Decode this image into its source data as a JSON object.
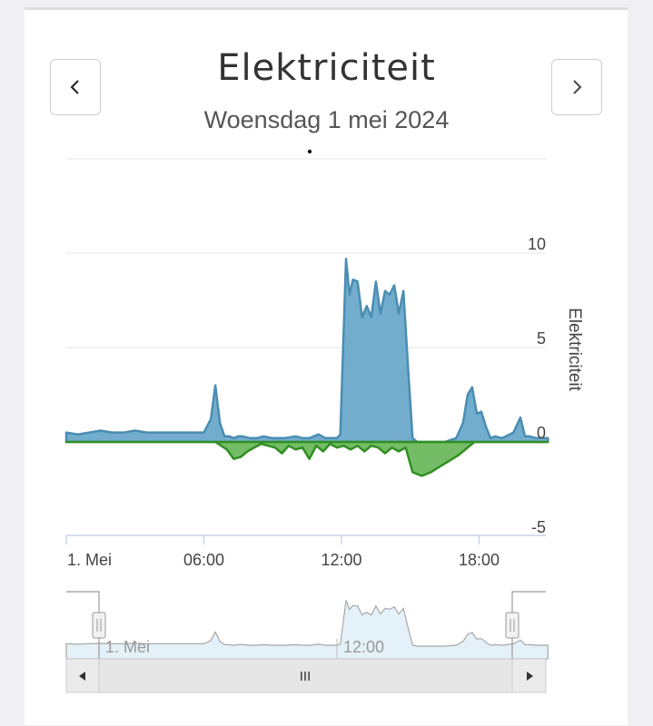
{
  "header": {
    "title": "Elektriciteit",
    "subtitle": "Woensdag 1 mei 2024"
  },
  "navigator": {
    "labels": [
      "1. Mei",
      "12:00"
    ],
    "scrollbar_label": "III"
  },
  "colors": {
    "consumption": "#5a9fc4",
    "production": "#5cb04a",
    "axis": "#c8d3e6",
    "grid": "#e6e6e6",
    "navigator_fill": "#e4f1f8"
  },
  "chart_data": {
    "type": "area",
    "title": "Elektriciteit",
    "subtitle": "Woensdag 1 mei 2024",
    "xlabel": "",
    "ylabel": "Elektriciteit",
    "x_ticks": [
      "1. Mei",
      "06:00",
      "12:00",
      "18:00"
    ],
    "y_ticks": [
      "-5",
      "0",
      "5",
      "10"
    ],
    "ylim": [
      -5,
      15
    ],
    "xlim_hours": [
      0,
      21
    ],
    "grid": true,
    "series": [
      {
        "color": "#5a9fc4",
        "x_hours": [
          0.0,
          0.5,
          1.0,
          1.5,
          2.0,
          2.5,
          3.0,
          3.5,
          4.0,
          4.5,
          5.0,
          5.5,
          6.0,
          6.3,
          6.5,
          6.7,
          6.9,
          7.1,
          7.3,
          7.5,
          7.7,
          8.0,
          8.3,
          8.6,
          9.0,
          9.5,
          10.0,
          10.3,
          10.6,
          11.0,
          11.3,
          11.6,
          11.8,
          11.95,
          12.1,
          12.2,
          12.35,
          12.5,
          12.7,
          12.9,
          13.1,
          13.3,
          13.5,
          13.7,
          13.9,
          14.1,
          14.3,
          14.5,
          14.7,
          14.9,
          15.1,
          15.3,
          15.5,
          16.0,
          16.5,
          17.0,
          17.3,
          17.5,
          17.7,
          17.9,
          18.1,
          18.3,
          18.5,
          18.7,
          19.0,
          19.5,
          19.8,
          20.0,
          20.2,
          20.5,
          21.0
        ],
        "values": [
          0.5,
          0.4,
          0.5,
          0.6,
          0.5,
          0.5,
          0.6,
          0.5,
          0.5,
          0.5,
          0.5,
          0.5,
          0.5,
          1.2,
          3.0,
          1.0,
          0.3,
          0.3,
          0.2,
          0.3,
          0.3,
          0.2,
          0.2,
          0.3,
          0.2,
          0.2,
          0.3,
          0.2,
          0.2,
          0.4,
          0.2,
          0.2,
          0.2,
          0.4,
          6.0,
          9.7,
          7.8,
          8.6,
          8.5,
          6.6,
          7.2,
          6.6,
          8.5,
          6.8,
          8.0,
          7.8,
          8.3,
          6.8,
          8.0,
          4.0,
          0.2,
          0.0,
          0.0,
          0.0,
          0.0,
          0.2,
          1.0,
          2.5,
          2.9,
          1.5,
          1.6,
          0.8,
          0.2,
          0.3,
          0.2,
          0.5,
          1.3,
          0.3,
          0.3,
          0.2,
          0.2
        ]
      },
      {
        "color": "#5cb04a",
        "x_hours": [
          0.0,
          6.5,
          7.0,
          7.3,
          7.6,
          7.9,
          8.2,
          8.5,
          8.8,
          9.1,
          9.4,
          9.7,
          10.0,
          10.3,
          10.6,
          10.9,
          11.2,
          11.5,
          11.8,
          12.1,
          12.4,
          12.7,
          13.0,
          13.3,
          13.6,
          13.9,
          14.2,
          14.5,
          14.8,
          15.1,
          15.5,
          15.9,
          16.3,
          16.7,
          17.1,
          17.5,
          17.8,
          18.0,
          18.3,
          21.0
        ],
        "values": [
          0.0,
          0.0,
          -0.4,
          -0.9,
          -0.8,
          -0.5,
          -0.3,
          -0.1,
          -0.2,
          -0.3,
          -0.6,
          -0.2,
          -0.4,
          -0.3,
          -0.9,
          -0.2,
          -0.5,
          -0.1,
          -0.3,
          -0.2,
          -0.4,
          -0.2,
          -0.5,
          -0.2,
          -0.3,
          -0.6,
          -0.3,
          -0.5,
          -0.3,
          -1.6,
          -1.8,
          -1.6,
          -1.3,
          -1.0,
          -0.7,
          -0.3,
          0.0,
          0.0,
          0.0,
          0.0
        ]
      }
    ]
  }
}
